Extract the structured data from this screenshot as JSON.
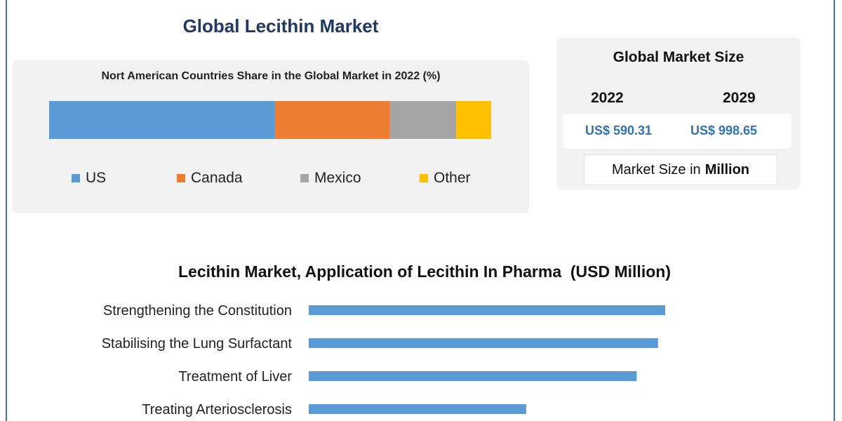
{
  "header": {
    "title": "Global Lecithin Market"
  },
  "chart_data": [
    {
      "type": "bar",
      "orientation": "horizontal-stacked",
      "title": "Nort American Countries Share in the Global Market in 2022 (%)",
      "categories": [
        "2022"
      ],
      "series": [
        {
          "name": "US",
          "values": [
            51
          ],
          "color": "#5b9bd5"
        },
        {
          "name": "Canada",
          "values": [
            26
          ],
          "color": "#ed7d31"
        },
        {
          "name": "Mexico",
          "values": [
            15
          ],
          "color": "#a5a5a5"
        },
        {
          "name": "Other",
          "values": [
            8
          ],
          "color": "#ffc000"
        }
      ],
      "legend": "bottom"
    },
    {
      "type": "bar",
      "orientation": "horizontal",
      "title": "Lecithin Market, Application of Lecithin In Pharma  (USD Million)",
      "categories": [
        "Strengthening the Constitution",
        "Stabilising the Lung Surfactant",
        "Treatment of Liver",
        "Treating Arteriosclerosis"
      ],
      "values": [
        100,
        98,
        92,
        61
      ],
      "color": "#5b9bd5"
    }
  ],
  "market_size": {
    "title": "Global Market Size",
    "years": [
      "2022",
      "2029"
    ],
    "values": [
      "US$ 590.31",
      "US$ 998.65"
    ],
    "unit_prefix": "Market Size in",
    "unit_bold": "Million"
  }
}
